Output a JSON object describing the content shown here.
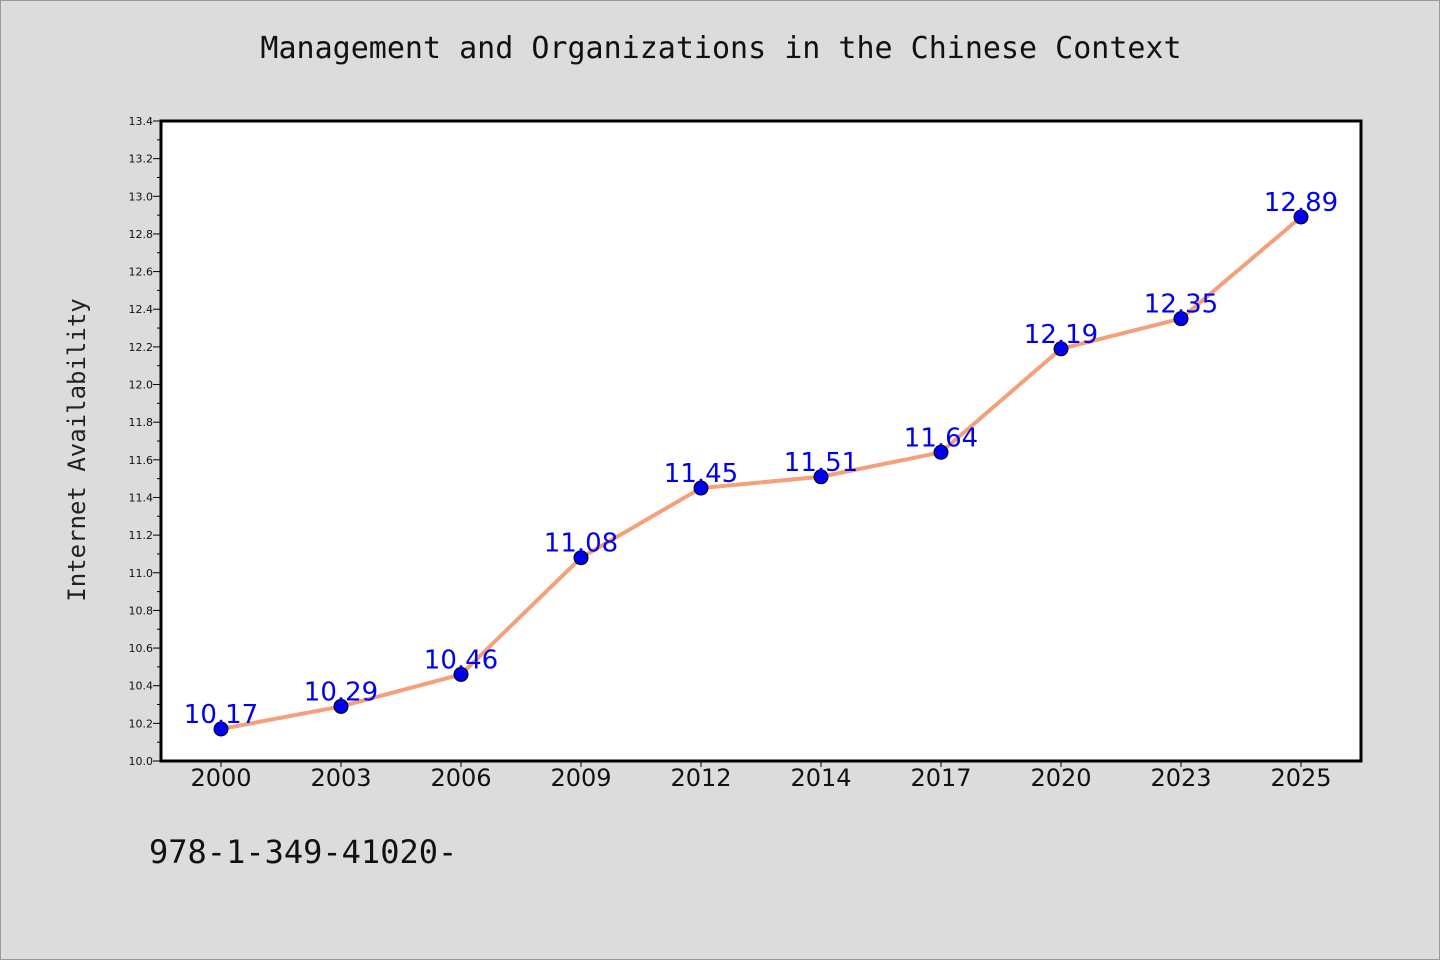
{
  "chart_data": {
    "type": "line",
    "title": "Management and Organizations in the Chinese Context",
    "ylabel": "Internet Availability",
    "xlabel": "",
    "categories": [
      "2000",
      "2003",
      "2006",
      "2009",
      "2012",
      "2014",
      "2017",
      "2020",
      "2023",
      "2025"
    ],
    "series": [
      {
        "values": [
          10.17,
          10.29,
          10.46,
          11.08,
          11.45,
          11.51,
          11.64,
          12.19,
          12.35,
          12.89
        ],
        "data_labels": [
          "10.17",
          "10.29",
          "10.46",
          "11.08",
          "11.45",
          "11.51",
          "11.64",
          "12.19",
          "12.35",
          "12.89"
        ],
        "line_color": "#f4a07a",
        "marker_color": "#0000ee",
        "label_color": "#0000ee"
      }
    ],
    "ylim": [
      10.0,
      13.4
    ],
    "yticks": [
      "10.0",
      "10.2",
      "10.4",
      "10.6",
      "10.8",
      "11.0",
      "11.2",
      "11.4",
      "11.6",
      "11.8",
      "12.0",
      "12.2",
      "12.4",
      "12.6",
      "12.8",
      "13.0",
      "13.2",
      "13.4"
    ],
    "grid": false,
    "legend": "none"
  },
  "footer": {
    "code": "978-1-349-41020-"
  },
  "colors": {
    "background": "#dcdcdc",
    "plot_background": "#ffffff",
    "axes": "#000000"
  }
}
